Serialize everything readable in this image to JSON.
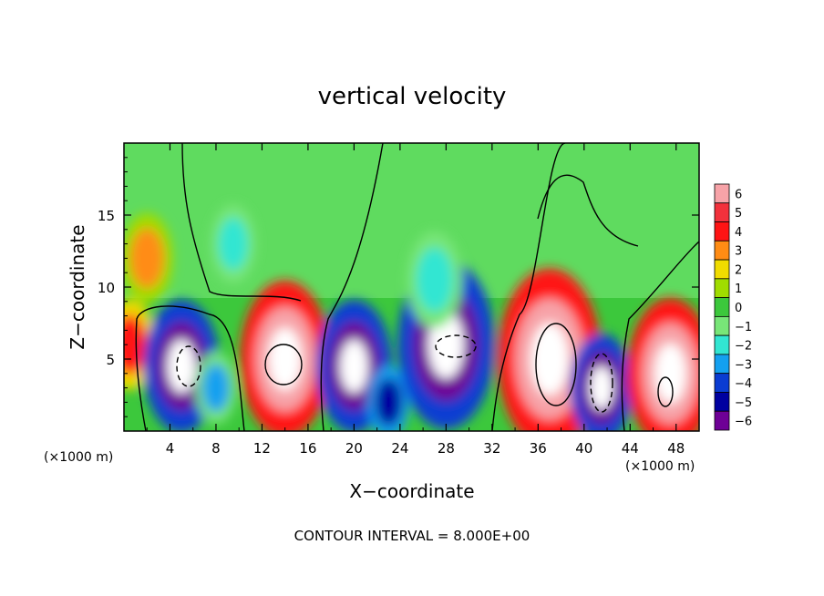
{
  "chart_data": {
    "type": "heatmap",
    "title": "vertical velocity",
    "xlabel": "X−coordinate",
    "ylabel": "Z−coordinate",
    "x_unit_label_left": "(×1000 m)",
    "x_unit_label_right": "(×1000 m)",
    "xlim": [
      0,
      50
    ],
    "ylim": [
      0,
      20
    ],
    "x_ticks": [
      4,
      8,
      12,
      16,
      20,
      24,
      28,
      32,
      36,
      40,
      44,
      48
    ],
    "y_ticks": [
      5,
      10,
      15
    ],
    "colorbar": {
      "levels": [
        6,
        5,
        4,
        3,
        2,
        1,
        0,
        -1,
        -2,
        -3,
        -4,
        -5,
        -6
      ],
      "colors": [
        "#f7a3a8",
        "#f2313c",
        "#ff1414",
        "#ff8c14",
        "#f0dc00",
        "#a0dc00",
        "#3cc83c",
        "#78e678",
        "#32e6d2",
        "#14a0f0",
        "#0a3cd2",
        "#0000a0",
        "#6e0096"
      ]
    },
    "note": "CONTOUR INTERVAL = 8.000E+00",
    "cells": [
      {
        "x": 0.5,
        "z": 6,
        "w": 1.5,
        "v": 4
      },
      {
        "x": 5,
        "z": 4.5,
        "w": 2.2,
        "v": -6
      },
      {
        "x": 8,
        "z": 3,
        "w": 1.2,
        "v": -3
      },
      {
        "x": 14,
        "z": 5,
        "w": 2.6,
        "v": 6
      },
      {
        "x": 20,
        "z": 4.5,
        "w": 2.2,
        "v": -6
      },
      {
        "x": 23,
        "z": 2,
        "w": 1.2,
        "v": -5
      },
      {
        "x": 28,
        "z": 6,
        "w": 2.8,
        "v": -6
      },
      {
        "x": 37,
        "z": 5,
        "w": 3.0,
        "v": 6
      },
      {
        "x": 41.5,
        "z": 3,
        "w": 1.8,
        "v": -6
      },
      {
        "x": 47.5,
        "z": 4,
        "w": 2.5,
        "v": 6
      },
      {
        "x": 2,
        "z": 12,
        "w": 1.5,
        "v": 3
      },
      {
        "x": 9.5,
        "z": 13,
        "w": 1.3,
        "v": -2
      },
      {
        "x": 27,
        "z": 10.5,
        "w": 1.6,
        "v": -2
      }
    ]
  }
}
